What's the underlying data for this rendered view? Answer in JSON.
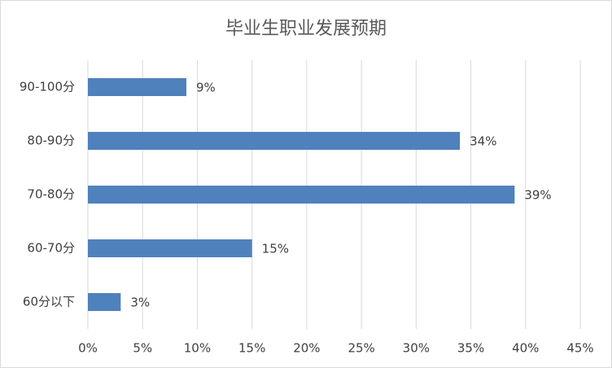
{
  "chart_data": {
    "type": "hbar",
    "title": "毕业生职业发展预期",
    "categories": [
      "90-100分",
      "80-90分",
      "70-80分",
      "60-70分",
      "60分以下"
    ],
    "values": [
      9,
      34,
      39,
      15,
      3
    ],
    "value_labels": [
      "9%",
      "34%",
      "39%",
      "15%",
      "3%"
    ],
    "color": "#4f81bd",
    "xlim": [
      0,
      45
    ],
    "xticks": [
      {
        "value": 0,
        "label": "0%"
      },
      {
        "value": 5,
        "label": "5%"
      },
      {
        "value": 10,
        "label": "10%"
      },
      {
        "value": 15,
        "label": "15%"
      },
      {
        "value": 20,
        "label": "20%"
      },
      {
        "value": 25,
        "label": "25%"
      },
      {
        "value": 30,
        "label": "30%"
      },
      {
        "value": 35,
        "label": "35%"
      },
      {
        "value": 40,
        "label": "40%"
      },
      {
        "value": 45,
        "label": "45%"
      }
    ],
    "grid": true
  }
}
